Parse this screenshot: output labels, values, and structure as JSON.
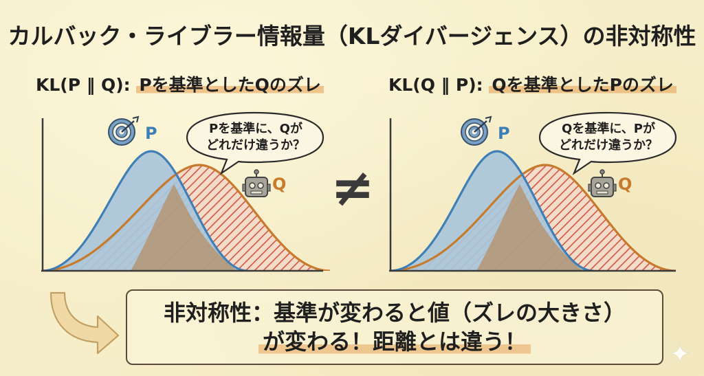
{
  "title": "カルバック・ライブラー情報量（KLダイバージェンス）の非対称性",
  "left_panel": {
    "heading_prefix": "KL(P ‖ Q):",
    "heading_highlight": "Pを基準としたQのズレ",
    "bubble_line1": "Pを基準に、Qが",
    "bubble_line2": "どれだけ違うか？",
    "reference_label": "P",
    "compared_label": "Q",
    "hatched_distribution": "Q",
    "reference_icon": "target-icon",
    "compared_icon": "robot-icon"
  },
  "right_panel": {
    "heading_prefix": "KL(Q ‖ P):",
    "heading_highlight": "Qを基準としたPのズレ",
    "bubble_line1": "Qを基準に、Pが",
    "bubble_line2": "どれだけ違うか？",
    "reference_label": "P",
    "compared_label": "Q",
    "hatched_distribution": "Q",
    "reference_icon": "target-icon",
    "compared_icon": "robot-icon"
  },
  "not_equal_symbol": "≠",
  "conclusion": {
    "line1": "非対称性：基準が変わると値（ズレの大きさ）",
    "line2": "が変わる！距離とは違う！"
  },
  "colors": {
    "background": "#f6eec8",
    "p_curve": "#3f7fb8",
    "p_fill": "#a9c6da",
    "q_curve": "#c87a2c",
    "hatch": "#d2553f",
    "highlight": "#e8aa64"
  }
}
